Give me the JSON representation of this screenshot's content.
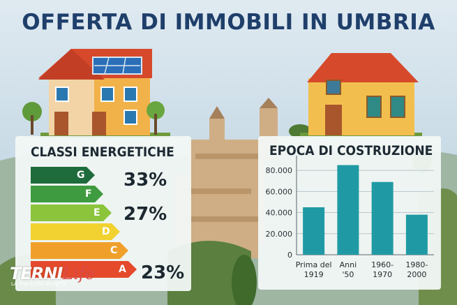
{
  "title": "OFFERTA DI IMMOBILI IN UMBRIA",
  "energy_panel": {
    "title": "CLASSI ENERGETICHE",
    "classes": [
      {
        "letter": "G",
        "color": "#1e6b3b"
      },
      {
        "letter": "F",
        "color": "#3f9b3f"
      },
      {
        "letter": "E",
        "color": "#8cc43c"
      },
      {
        "letter": "D",
        "color": "#f2d230"
      },
      {
        "letter": "C",
        "color": "#f0a02a"
      },
      {
        "letter": "A",
        "color": "#e44a2b"
      }
    ],
    "percentages": [
      {
        "class": "G",
        "value": "33%"
      },
      {
        "class": "E",
        "value": "27%"
      },
      {
        "class": "A",
        "value": "23%"
      }
    ]
  },
  "chart_data": {
    "type": "bar",
    "title": "EPOCA DI COSTRUZIONE",
    "categories": [
      [
        "Prima del",
        "1919"
      ],
      [
        "Anni",
        "'50"
      ],
      [
        "1960-",
        "1970"
      ],
      [
        "1980-",
        "2000"
      ]
    ],
    "values": [
      45000,
      85000,
      69000,
      38000
    ],
    "yticks": [
      "0",
      "20.000",
      "40.000",
      "60.000",
      "80.000"
    ],
    "ytick_values": [
      0,
      20000,
      40000,
      60000,
      80000
    ],
    "ylim": [
      0,
      90000
    ],
    "bar_color": "#1f9aa5",
    "grid": true
  },
  "watermark": {
    "brand": "TERNI",
    "brand_suffix": "Life",
    "tagline": "LA TUA CITTÀ IN FOTO"
  }
}
